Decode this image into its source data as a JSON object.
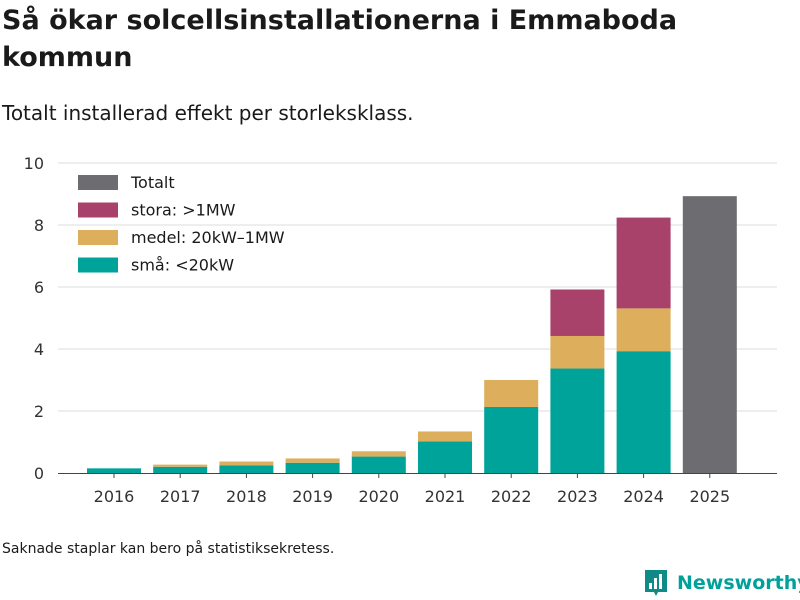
{
  "title": "Så ökar solcellsinstallationerna i Emmaboda kommun",
  "subtitle": "Totalt installerad effekt per storleksklass.",
  "footnote": "Saknade staplar kan bero på statistiksekretess.",
  "brand": "Newsworthy",
  "chart_data": {
    "type": "bar",
    "stacked": true,
    "categories": [
      "2016",
      "2017",
      "2018",
      "2019",
      "2020",
      "2021",
      "2022",
      "2023",
      "2024",
      "2025"
    ],
    "ylim": [
      0,
      10
    ],
    "yticks": [
      0,
      2,
      4,
      6,
      8,
      10
    ],
    "grid": true,
    "legend_position": "top-left",
    "xlabel": "",
    "ylabel": "",
    "series": [
      {
        "name": "små: <20kW",
        "color": "#00a39a",
        "values": [
          0.15,
          0.2,
          0.25,
          0.33,
          0.53,
          1.02,
          2.13,
          3.37,
          3.93,
          null
        ]
      },
      {
        "name": "medel: 20kW–1MW",
        "color": "#ddae5c",
        "values": [
          null,
          0.07,
          0.12,
          0.14,
          0.17,
          0.32,
          0.87,
          1.05,
          1.38,
          null
        ]
      },
      {
        "name": "stora: >1MW",
        "color": "#a9426a",
        "values": [
          null,
          null,
          null,
          null,
          null,
          null,
          null,
          1.5,
          2.93,
          null
        ]
      },
      {
        "name": "Totalt",
        "color": "#6d6c71",
        "values": [
          null,
          null,
          null,
          null,
          null,
          null,
          null,
          null,
          null,
          8.93
        ]
      }
    ],
    "legend_order": [
      "Totalt",
      "stora: >1MW",
      "medel: 20kW–1MW",
      "små: <20kW"
    ]
  }
}
